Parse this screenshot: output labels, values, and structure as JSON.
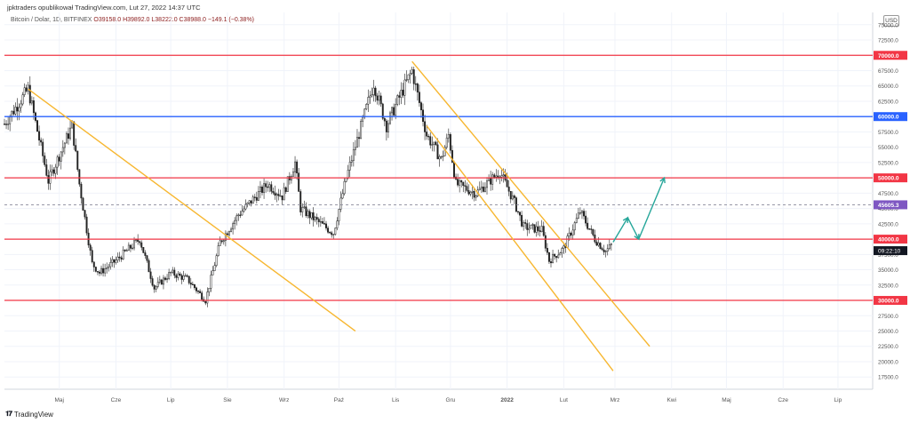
{
  "header": {
    "published_by": "jpktraders opublikował TradingView.com, Lut 27, 2022 14:37 UTC"
  },
  "info": {
    "symbol": "Bitcoin / Dolar, 1D, BITFINEX",
    "open": "O39158.0",
    "high": "H39892.0",
    "low": "L38222.0",
    "close": "C38988.0",
    "change": "−149.1 (−0.38%)"
  },
  "currency_badge": "USD",
  "footer": {
    "brand": "TradingView"
  },
  "chart_data": {
    "type": "candlestick",
    "title": "Bitcoin / Dolar, 1D, BITFINEX",
    "x_ticks": [
      "Maj",
      "Cze",
      "Lip",
      "Sie",
      "Wrz",
      "Paź",
      "Lis",
      "Gru",
      "2022",
      "Lut",
      "Mrz",
      "Kwi",
      "Maj",
      "Cze",
      "Lip"
    ],
    "y_ticks": [
      17500,
      20000,
      22500,
      25000,
      27500,
      30000,
      32500,
      35000,
      37500,
      40000,
      42500,
      45000,
      47500,
      50000,
      52500,
      55000,
      57500,
      60000,
      62500,
      65000,
      67500,
      70000,
      72500,
      75000
    ],
    "ylim": [
      15500,
      77000
    ],
    "horizontal_levels": [
      {
        "value": 70000,
        "label": "70000.0",
        "color": "#f23645"
      },
      {
        "value": 60000,
        "label": "60000.0",
        "color": "#2962ff"
      },
      {
        "value": 50000,
        "label": "50000.0",
        "color": "#f23645"
      },
      {
        "value": 40000,
        "label": "40000.0",
        "color": "#f23645"
      },
      {
        "value": 30000,
        "label": "30000.0",
        "color": "#f23645"
      }
    ],
    "dashed_level": {
      "value": 45605.3,
      "label": "45605.3",
      "color": "#7e57c2"
    },
    "current_price": {
      "value": 38988.0,
      "countdown": "09:22:10",
      "color": "#131722"
    },
    "price_path_points": [
      [
        "2021-04-01",
        58800
      ],
      [
        "2021-04-14",
        64500
      ],
      [
        "2021-04-25",
        49500
      ],
      [
        "2021-05-08",
        58500
      ],
      [
        "2021-05-12",
        49000
      ],
      [
        "2021-05-19",
        36000
      ],
      [
        "2021-05-23",
        34500
      ],
      [
        "2021-06-01",
        36500
      ],
      [
        "2021-06-14",
        40000
      ],
      [
        "2021-06-22",
        32000
      ],
      [
        "2021-07-01",
        34500
      ],
      [
        "2021-07-10",
        33500
      ],
      [
        "2021-07-20",
        30000
      ],
      [
        "2021-07-28",
        39500
      ],
      [
        "2021-08-07",
        44000
      ],
      [
        "2021-08-23",
        49000
      ],
      [
        "2021-08-31",
        47000
      ],
      [
        "2021-09-07",
        52500
      ],
      [
        "2021-09-10",
        45000
      ],
      [
        "2021-09-21",
        42500
      ],
      [
        "2021-09-28",
        41000
      ],
      [
        "2021-10-05",
        50000
      ],
      [
        "2021-10-20",
        65500
      ],
      [
        "2021-10-27",
        58500
      ],
      [
        "2021-11-02",
        62500
      ],
      [
        "2021-11-10",
        67500
      ],
      [
        "2021-11-18",
        57000
      ],
      [
        "2021-11-26",
        53000
      ],
      [
        "2021-11-30",
        57000
      ],
      [
        "2021-12-04",
        49000
      ],
      [
        "2021-12-15",
        47500
      ],
      [
        "2021-12-28",
        51000
      ],
      [
        "2022-01-05",
        46000
      ],
      [
        "2022-01-10",
        42000
      ],
      [
        "2022-01-20",
        41500
      ],
      [
        "2022-01-24",
        36500
      ],
      [
        "2022-02-01",
        38500
      ],
      [
        "2022-02-10",
        44500
      ],
      [
        "2022-02-18",
        40000
      ],
      [
        "2022-02-24",
        38000
      ],
      [
        "2022-02-27",
        38988
      ]
    ],
    "trendlines": [
      {
        "from": [
          "2021-04-14",
          64500
        ],
        "to": [
          "2021-10-10",
          25000
        ],
        "color": "#f7b731"
      },
      {
        "from": [
          "2021-11-10",
          69000
        ],
        "to": [
          "2022-03-20",
          22500
        ],
        "color": "#f7b731"
      },
      {
        "from": [
          "2021-11-18",
          58500
        ],
        "to": [
          "2022-02-28",
          18500
        ],
        "color": "#f7b731"
      }
    ],
    "projection_arrows": [
      {
        "path": [
          [
            "2022-02-28",
            39500
          ],
          [
            "2022-03-08",
            43500
          ],
          [
            "2022-03-14",
            40000
          ]
        ],
        "color": "#26a69a"
      },
      {
        "path": [
          [
            "2022-03-14",
            40000
          ],
          [
            "2022-03-28",
            50000
          ]
        ],
        "color": "#26a69a"
      }
    ],
    "grid": true,
    "ylabel_position": "right"
  }
}
